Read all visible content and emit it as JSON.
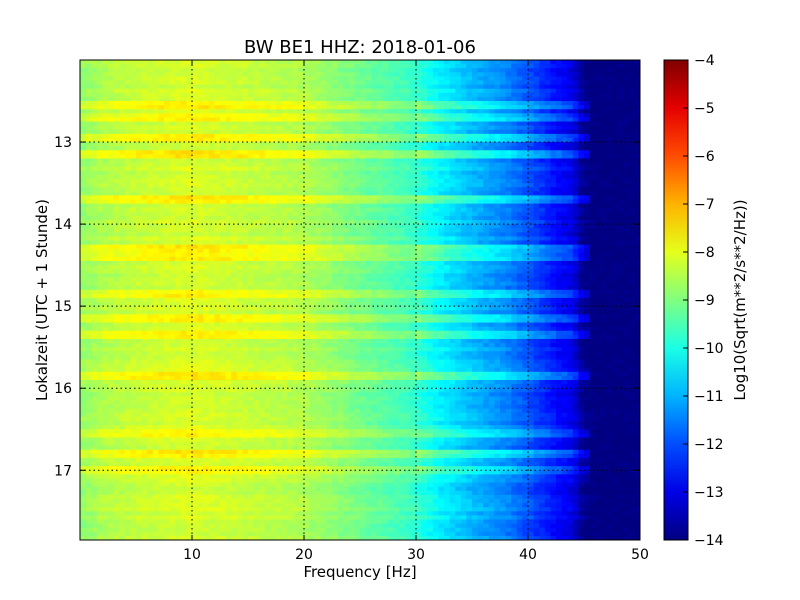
{
  "chart_data": {
    "type": "heatmap",
    "title": "BW BE1 HHZ: 2018-01-06",
    "xlabel": "Frequency [Hz]",
    "ylabel": "Lokalzeit (UTC + 1 Stunde)",
    "xlim": [
      0,
      50
    ],
    "ylim": [
      17.85,
      12.0
    ],
    "y_inverted": true,
    "x_ticks": [
      10,
      20,
      30,
      40,
      50
    ],
    "y_ticks": [
      13,
      14,
      15,
      16,
      17
    ],
    "grid": true,
    "colormap": "jet",
    "colorbar": {
      "label": "Log10(Sqrt(m**2/s**2/Hz))",
      "range": [
        -14,
        -4
      ],
      "ticks": [
        -4,
        -5,
        -6,
        -7,
        -8,
        -9,
        -10,
        -11,
        -12,
        -13,
        -14
      ]
    },
    "frequency_profile": {
      "frequency_hz": [
        0,
        2,
        5,
        10,
        15,
        20,
        25,
        30,
        32,
        35,
        38,
        40,
        42,
        44,
        45,
        46,
        50
      ],
      "log10_amplitude": [
        -8.8,
        -8.5,
        -8.3,
        -8.1,
        -8.3,
        -8.5,
        -9.1,
        -9.7,
        -10.3,
        -10.9,
        -11.4,
        -11.9,
        -12.5,
        -13.0,
        -13.9,
        -14,
        -14
      ]
    },
    "high_amplitude_bands_hours": [
      12.55,
      12.72,
      12.95,
      13.15,
      13.7,
      14.3,
      14.42,
      14.85,
      15.15,
      15.35,
      15.85,
      16.55,
      16.8,
      17.0
    ]
  }
}
